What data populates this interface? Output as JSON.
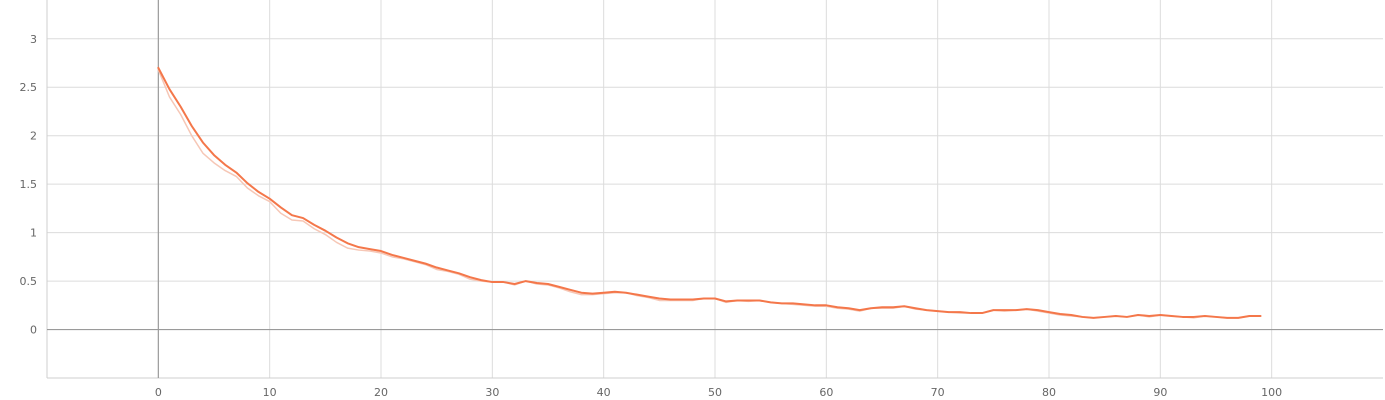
{
  "chart_data": {
    "type": "line",
    "title": "",
    "xlabel": "",
    "ylabel": "",
    "xlim": [
      -10,
      110
    ],
    "ylim": [
      -0.5,
      3.4
    ],
    "grid": true,
    "x_ticks": [
      0,
      10,
      20,
      30,
      40,
      50,
      60,
      70,
      80,
      90,
      100
    ],
    "y_ticks": [
      0,
      0.5,
      1,
      1.5,
      2,
      2.5,
      3
    ],
    "x_tick_labels": [
      "0",
      "10",
      "20",
      "30",
      "40",
      "50",
      "60",
      "70",
      "80",
      "90",
      "100"
    ],
    "y_tick_labels": [
      "0",
      "0.5",
      "1",
      "1.5",
      "2",
      "2.5",
      "3"
    ],
    "series": [
      {
        "role": "raw",
        "color": "#f6c7b6",
        "x": [
          0,
          1,
          2,
          3,
          4,
          5,
          6,
          7,
          8,
          9,
          10,
          11,
          12,
          13,
          14,
          15,
          16,
          17,
          18,
          19,
          20,
          21,
          22,
          23,
          24,
          25,
          26,
          27,
          28,
          29,
          30,
          31,
          32,
          33,
          34,
          35,
          36,
          37,
          38,
          39,
          40,
          41,
          42,
          43,
          44,
          45,
          46,
          47,
          48,
          49,
          50,
          51,
          52,
          53,
          54,
          55,
          56,
          57,
          58,
          59,
          60,
          61,
          62,
          63,
          64,
          65,
          66,
          67,
          68,
          69,
          70,
          71,
          72,
          73,
          74,
          75,
          76,
          77,
          78,
          79,
          80,
          81,
          82,
          83,
          84,
          85,
          86,
          87,
          88,
          89,
          90,
          91,
          92,
          93,
          94,
          95,
          96,
          97,
          98,
          99
        ],
        "values": [
          2.68,
          2.4,
          2.22,
          2.0,
          1.82,
          1.72,
          1.64,
          1.58,
          1.46,
          1.38,
          1.32,
          1.2,
          1.13,
          1.12,
          1.04,
          0.98,
          0.9,
          0.84,
          0.82,
          0.81,
          0.79,
          0.75,
          0.73,
          0.7,
          0.67,
          0.62,
          0.6,
          0.57,
          0.52,
          0.5,
          0.49,
          0.49,
          0.46,
          0.5,
          0.47,
          0.46,
          0.43,
          0.39,
          0.36,
          0.36,
          0.37,
          0.38,
          0.38,
          0.35,
          0.33,
          0.3,
          0.3,
          0.3,
          0.3,
          0.32,
          0.32,
          0.28,
          0.3,
          0.29,
          0.3,
          0.28,
          0.27,
          0.26,
          0.25,
          0.24,
          0.24,
          0.22,
          0.21,
          0.19,
          0.22,
          0.22,
          0.22,
          0.24,
          0.21,
          0.2,
          0.19,
          0.18,
          0.17,
          0.17,
          0.17,
          0.2,
          0.19,
          0.2,
          0.21,
          0.19,
          0.17,
          0.15,
          0.14,
          0.13,
          0.12,
          0.13,
          0.14,
          0.13,
          0.15,
          0.13,
          0.15,
          0.14,
          0.13,
          0.12,
          0.14,
          0.13,
          0.12,
          0.12,
          0.14,
          0.14
        ]
      },
      {
        "role": "smoothed",
        "color": "#f4774a",
        "x": [
          0,
          1,
          2,
          3,
          4,
          5,
          6,
          7,
          8,
          9,
          10,
          11,
          12,
          13,
          14,
          15,
          16,
          17,
          18,
          19,
          20,
          21,
          22,
          23,
          24,
          25,
          26,
          27,
          28,
          29,
          30,
          31,
          32,
          33,
          34,
          35,
          36,
          37,
          38,
          39,
          40,
          41,
          42,
          43,
          44,
          45,
          46,
          47,
          48,
          49,
          50,
          51,
          52,
          53,
          54,
          55,
          56,
          57,
          58,
          59,
          60,
          61,
          62,
          63,
          64,
          65,
          66,
          67,
          68,
          69,
          70,
          71,
          72,
          73,
          74,
          75,
          76,
          77,
          78,
          79,
          80,
          81,
          82,
          83,
          84,
          85,
          86,
          87,
          88,
          89,
          90,
          91,
          92,
          93,
          94,
          95,
          96,
          97,
          98,
          99
        ],
        "values": [
          2.7,
          2.48,
          2.3,
          2.1,
          1.93,
          1.8,
          1.7,
          1.62,
          1.51,
          1.42,
          1.35,
          1.26,
          1.18,
          1.15,
          1.08,
          1.02,
          0.95,
          0.89,
          0.85,
          0.83,
          0.81,
          0.77,
          0.74,
          0.71,
          0.68,
          0.64,
          0.61,
          0.58,
          0.54,
          0.51,
          0.49,
          0.49,
          0.47,
          0.5,
          0.48,
          0.47,
          0.44,
          0.41,
          0.38,
          0.37,
          0.38,
          0.39,
          0.38,
          0.36,
          0.34,
          0.32,
          0.31,
          0.31,
          0.31,
          0.32,
          0.32,
          0.29,
          0.3,
          0.3,
          0.3,
          0.28,
          0.27,
          0.27,
          0.26,
          0.25,
          0.25,
          0.23,
          0.22,
          0.2,
          0.22,
          0.23,
          0.23,
          0.24,
          0.22,
          0.2,
          0.19,
          0.18,
          0.18,
          0.17,
          0.17,
          0.2,
          0.2,
          0.2,
          0.21,
          0.2,
          0.18,
          0.16,
          0.15,
          0.13,
          0.12,
          0.13,
          0.14,
          0.13,
          0.15,
          0.14,
          0.15,
          0.14,
          0.13,
          0.13,
          0.14,
          0.13,
          0.12,
          0.12,
          0.14,
          0.14
        ]
      }
    ]
  }
}
